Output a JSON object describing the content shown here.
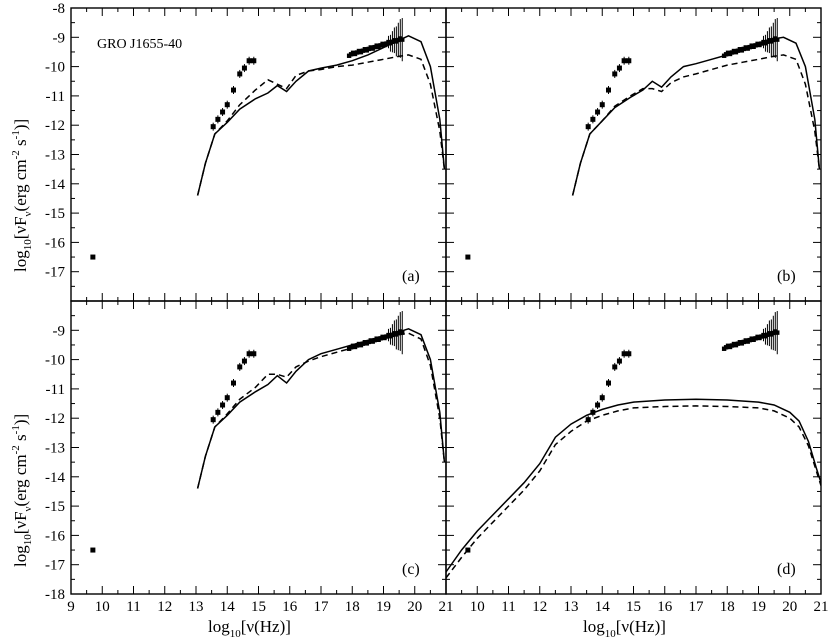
{
  "chart_data": {
    "type": "scatter",
    "layout": "2x2 panels sharing axes",
    "xlim": [
      9,
      21
    ],
    "ylim": [
      -18,
      -8
    ],
    "x_ticks": [
      9,
      10,
      11,
      12,
      13,
      14,
      15,
      16,
      17,
      18,
      19,
      20,
      21
    ],
    "y_ticks": [
      -18,
      -17,
      -16,
      -15,
      -14,
      -13,
      -12,
      -11,
      -10,
      -9,
      -8
    ],
    "xlabel": {
      "pre": "log",
      "sub": "10",
      "post": "[ν(Hz)]"
    },
    "ylabel": {
      "pre": "log",
      "sub1": "10",
      "mid": "[νF",
      "sub2": "ν",
      "post": "(erg cm",
      "sup1": "-2",
      "post2": " s",
      "sup2": "-1",
      "end": ")]"
    },
    "annotation": "GRO J1655-40",
    "observed_points": {
      "radio": [
        [
          9.7,
          -16.5
        ]
      ],
      "ir_optical": [
        [
          13.55,
          -12.05
        ],
        [
          13.7,
          -11.8
        ],
        [
          13.85,
          -11.55
        ],
        [
          14.0,
          -11.3
        ],
        [
          14.2,
          -10.8
        ],
        [
          14.4,
          -10.25
        ],
        [
          14.55,
          -10.05
        ],
        [
          14.7,
          -9.8
        ],
        [
          14.85,
          -9.8
        ]
      ],
      "xray_band": {
        "x_start": 17.9,
        "x_end": 19.6,
        "y_start": -9.6,
        "y_end": -9.05,
        "n": 28
      }
    },
    "panels": [
      {
        "label": "(a)",
        "solid": [
          [
            13.05,
            -14.4
          ],
          [
            13.3,
            -13.3
          ],
          [
            13.6,
            -12.3
          ],
          [
            14.0,
            -11.9
          ],
          [
            14.4,
            -11.45
          ],
          [
            14.9,
            -11.1
          ],
          [
            15.3,
            -10.9
          ],
          [
            15.6,
            -10.65
          ],
          [
            15.9,
            -10.85
          ],
          [
            16.2,
            -10.5
          ],
          [
            16.6,
            -10.15
          ],
          [
            17.0,
            -10.05
          ],
          [
            17.5,
            -9.95
          ],
          [
            18.0,
            -9.8
          ],
          [
            18.5,
            -9.6
          ],
          [
            19.0,
            -9.35
          ],
          [
            19.5,
            -9.1
          ],
          [
            19.8,
            -8.95
          ],
          [
            20.2,
            -9.15
          ],
          [
            20.5,
            -10.0
          ],
          [
            20.8,
            -11.8
          ],
          [
            20.95,
            -13.5
          ]
        ],
        "dashed": [
          [
            13.05,
            -14.4
          ],
          [
            13.3,
            -13.3
          ],
          [
            13.6,
            -12.3
          ],
          [
            14.0,
            -11.85
          ],
          [
            14.4,
            -11.3
          ],
          [
            14.9,
            -10.8
          ],
          [
            15.3,
            -10.45
          ],
          [
            15.6,
            -10.6
          ],
          [
            15.9,
            -10.75
          ],
          [
            16.2,
            -10.3
          ],
          [
            16.6,
            -10.15
          ],
          [
            17.0,
            -10.1
          ],
          [
            17.5,
            -10.0
          ],
          [
            18.0,
            -9.95
          ],
          [
            18.5,
            -9.85
          ],
          [
            19.0,
            -9.75
          ],
          [
            19.5,
            -9.65
          ],
          [
            19.8,
            -9.6
          ],
          [
            20.2,
            -9.75
          ],
          [
            20.5,
            -10.6
          ],
          [
            20.8,
            -12.2
          ],
          [
            20.95,
            -13.5
          ]
        ]
      },
      {
        "label": "(b)",
        "solid": [
          [
            13.05,
            -14.4
          ],
          [
            13.3,
            -13.3
          ],
          [
            13.6,
            -12.3
          ],
          [
            14.0,
            -11.85
          ],
          [
            14.4,
            -11.4
          ],
          [
            14.9,
            -11.05
          ],
          [
            15.3,
            -10.8
          ],
          [
            15.6,
            -10.5
          ],
          [
            15.9,
            -10.7
          ],
          [
            16.2,
            -10.35
          ],
          [
            16.6,
            -10.0
          ],
          [
            17.0,
            -9.9
          ],
          [
            17.5,
            -9.75
          ],
          [
            18.0,
            -9.6
          ],
          [
            18.5,
            -9.4
          ],
          [
            19.0,
            -9.2
          ],
          [
            19.5,
            -9.05
          ],
          [
            19.8,
            -9.0
          ],
          [
            20.2,
            -9.2
          ],
          [
            20.5,
            -10.0
          ],
          [
            20.8,
            -11.8
          ],
          [
            20.95,
            -13.5
          ]
        ],
        "dashed": [
          [
            13.05,
            -14.4
          ],
          [
            13.3,
            -13.3
          ],
          [
            13.6,
            -12.3
          ],
          [
            14.0,
            -11.85
          ],
          [
            14.4,
            -11.35
          ],
          [
            14.9,
            -11.0
          ],
          [
            15.3,
            -10.75
          ],
          [
            15.6,
            -10.75
          ],
          [
            15.9,
            -10.85
          ],
          [
            16.2,
            -10.55
          ],
          [
            16.6,
            -10.35
          ],
          [
            17.0,
            -10.25
          ],
          [
            17.5,
            -10.1
          ],
          [
            18.0,
            -9.95
          ],
          [
            18.5,
            -9.85
          ],
          [
            19.0,
            -9.75
          ],
          [
            19.5,
            -9.65
          ],
          [
            19.8,
            -9.6
          ],
          [
            20.2,
            -9.75
          ],
          [
            20.5,
            -10.6
          ],
          [
            20.8,
            -12.2
          ],
          [
            20.95,
            -13.5
          ]
        ]
      },
      {
        "label": "(c)",
        "solid": [
          [
            13.05,
            -14.4
          ],
          [
            13.3,
            -13.3
          ],
          [
            13.6,
            -12.3
          ],
          [
            14.0,
            -11.9
          ],
          [
            14.4,
            -11.45
          ],
          [
            14.9,
            -11.1
          ],
          [
            15.3,
            -10.85
          ],
          [
            15.6,
            -10.55
          ],
          [
            15.9,
            -10.8
          ],
          [
            16.2,
            -10.4
          ],
          [
            16.6,
            -10.0
          ],
          [
            17.0,
            -9.8
          ],
          [
            17.5,
            -9.65
          ],
          [
            18.0,
            -9.5
          ],
          [
            18.5,
            -9.35
          ],
          [
            19.0,
            -9.2
          ],
          [
            19.5,
            -9.05
          ],
          [
            19.8,
            -8.95
          ],
          [
            20.2,
            -9.15
          ],
          [
            20.5,
            -10.0
          ],
          [
            20.8,
            -11.8
          ],
          [
            20.95,
            -13.5
          ]
        ],
        "dashed": [
          [
            13.05,
            -14.4
          ],
          [
            13.3,
            -13.3
          ],
          [
            13.6,
            -12.3
          ],
          [
            14.0,
            -11.85
          ],
          [
            14.4,
            -11.35
          ],
          [
            14.9,
            -10.95
          ],
          [
            15.3,
            -10.5
          ],
          [
            15.6,
            -10.5
          ],
          [
            15.9,
            -10.6
          ],
          [
            16.2,
            -10.25
          ],
          [
            16.6,
            -10.05
          ],
          [
            17.0,
            -9.9
          ],
          [
            17.5,
            -9.75
          ],
          [
            18.0,
            -9.6
          ],
          [
            18.5,
            -9.45
          ],
          [
            19.0,
            -9.3
          ],
          [
            19.5,
            -9.15
          ],
          [
            19.8,
            -9.1
          ],
          [
            20.2,
            -9.3
          ],
          [
            20.5,
            -10.2
          ],
          [
            20.8,
            -12.0
          ],
          [
            20.95,
            -13.5
          ]
        ]
      },
      {
        "label": "(d)",
        "solid": [
          [
            9.0,
            -17.25
          ],
          [
            9.5,
            -16.5
          ],
          [
            10.0,
            -15.85
          ],
          [
            10.5,
            -15.3
          ],
          [
            11.0,
            -14.75
          ],
          [
            11.5,
            -14.2
          ],
          [
            12.0,
            -13.55
          ],
          [
            12.5,
            -12.65
          ],
          [
            13.0,
            -12.2
          ],
          [
            13.5,
            -11.9
          ],
          [
            14.0,
            -11.7
          ],
          [
            14.5,
            -11.55
          ],
          [
            15.0,
            -11.45
          ],
          [
            16.0,
            -11.38
          ],
          [
            17.0,
            -11.35
          ],
          [
            18.0,
            -11.38
          ],
          [
            19.0,
            -11.45
          ],
          [
            19.5,
            -11.55
          ],
          [
            20.0,
            -11.8
          ],
          [
            20.3,
            -12.1
          ],
          [
            20.6,
            -12.8
          ],
          [
            20.85,
            -13.7
          ],
          [
            21.0,
            -14.2
          ]
        ],
        "dashed": [
          [
            9.0,
            -17.45
          ],
          [
            9.5,
            -16.75
          ],
          [
            10.0,
            -16.1
          ],
          [
            10.5,
            -15.55
          ],
          [
            11.0,
            -15.0
          ],
          [
            11.5,
            -14.45
          ],
          [
            12.0,
            -13.8
          ],
          [
            12.5,
            -12.9
          ],
          [
            13.0,
            -12.45
          ],
          [
            13.5,
            -12.1
          ],
          [
            14.0,
            -11.9
          ],
          [
            14.5,
            -11.75
          ],
          [
            15.0,
            -11.65
          ],
          [
            16.0,
            -11.6
          ],
          [
            17.0,
            -11.58
          ],
          [
            18.0,
            -11.6
          ],
          [
            19.0,
            -11.65
          ],
          [
            19.5,
            -11.75
          ],
          [
            20.0,
            -12.0
          ],
          [
            20.3,
            -12.3
          ],
          [
            20.6,
            -12.95
          ],
          [
            20.85,
            -13.8
          ],
          [
            21.0,
            -14.3
          ]
        ]
      }
    ]
  }
}
